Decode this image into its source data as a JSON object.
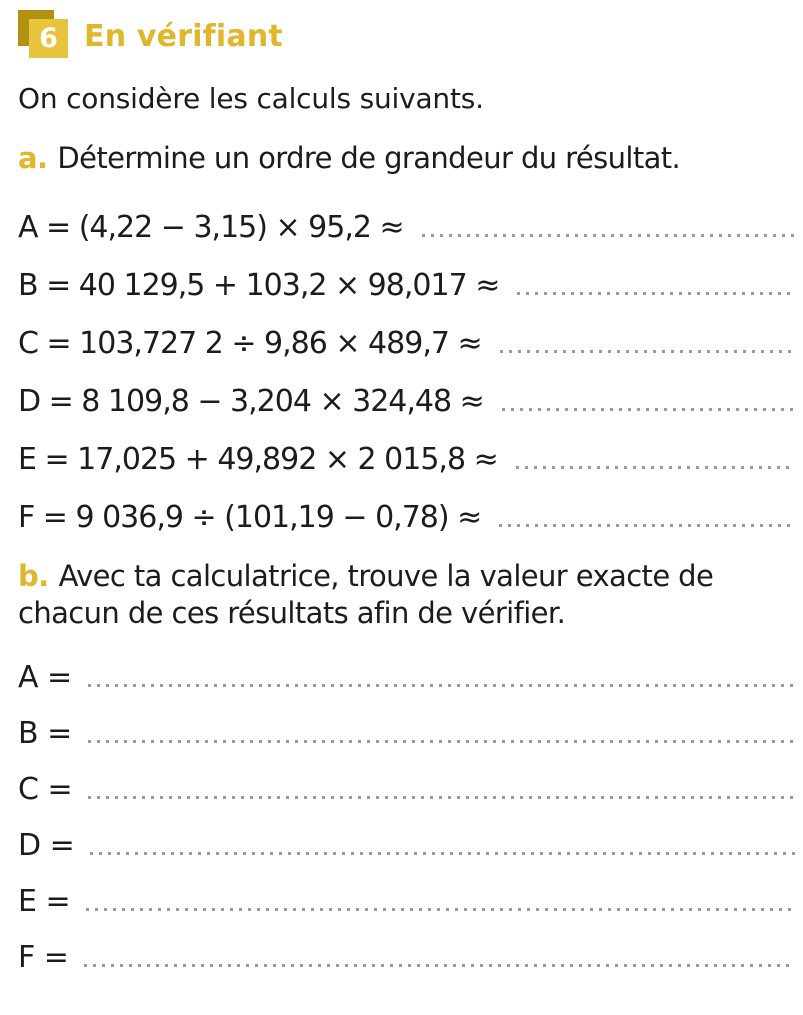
{
  "header": {
    "number": "6",
    "title": "En vérifiant"
  },
  "intro": "On considère les calculs suivants.",
  "part_a": {
    "label": "a.",
    "instruction": "Détermine un ordre de grandeur du résultat.",
    "calculations": [
      "A = (4,22 − 3,15) × 95,2 ≈",
      "B = 40 129,5 + 103,2 × 98,017 ≈",
      "C = 103,727 2 ÷ 9,86 × 489,7 ≈",
      "D = 8 109,8 − 3,204 × 324,48 ≈",
      "E = 17,025 + 49,892 × 2 015,8 ≈",
      "F = 9 036,9 ÷ (101,19 − 0,78) ≈"
    ]
  },
  "part_b": {
    "label": "b.",
    "instruction": "Avec ta calculatrice, trouve la valeur exacte de chacun de ces résultats afin de vérifier.",
    "answers": [
      "A =",
      "B =",
      "C =",
      "D =",
      "E =",
      "F ="
    ]
  },
  "colors": {
    "accent_gold": "#dfb62c",
    "badge_front": "#e8c43c",
    "badge_back": "#b29110",
    "dot_gray": "#9a9a9a",
    "text_color": "#1c1c1c"
  }
}
